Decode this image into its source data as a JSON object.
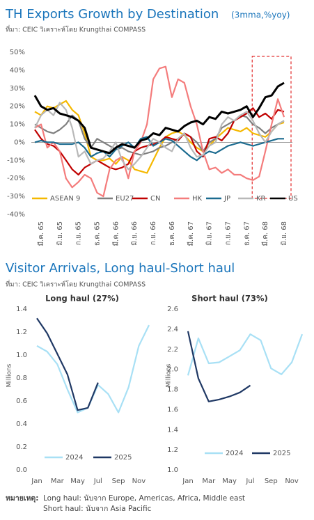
{
  "header": {
    "title": "TH Exports Growth by Destination",
    "subtitle": "(3mma,%yoy)",
    "source": "ที่มา: CEIC วิเคราะห์โดย Krungthai COMPASS"
  },
  "section2": {
    "title": "Visitor Arrivals, Long haul-Short haul",
    "source": "ที่มา: CEIC วิเคราะห์โดย Krungthai COMPASS"
  },
  "notes": {
    "label": "หมายเหตุ:",
    "lines": [
      "Long haul: นับจาก Europe, Americas, Africa, Middle east",
      "Short haul: นับจาก Asia Pacific"
    ]
  },
  "chart_data": [
    {
      "type": "line",
      "categories": [
        null,
        "มี.ค. 65",
        null,
        null,
        "มิ.ย. 65",
        null,
        null,
        "ก.ย. 65",
        null,
        null,
        "ธ.ค. 65",
        null,
        null,
        "มี.ค. 66",
        null,
        null,
        "มิ.ย. 66",
        null,
        null,
        "ก.ย. 66",
        null,
        null,
        "ธ.ค. 66",
        null,
        null,
        "มี.ค. 67",
        null,
        null,
        "มิ.ย. 67",
        null,
        null,
        "ก.ย. 67",
        null,
        null,
        "ธ.ค. 67",
        null,
        null,
        "มี.ค. 68",
        null,
        null,
        "มิ.ย. 68"
      ],
      "ylim": [
        -40,
        50
      ],
      "yticks": [
        {
          "value": -40,
          "label": "-40%"
        },
        {
          "value": -30,
          "label": "-30%"
        },
        {
          "value": -20,
          "label": "-20%"
        },
        {
          "value": -10,
          "label": "-10%"
        },
        {
          "value": 0,
          "label": "0%"
        },
        {
          "value": 10,
          "label": "10%"
        },
        {
          "value": 20,
          "label": "20%"
        },
        {
          "value": 30,
          "label": "30%"
        },
        {
          "value": 40,
          "label": "40%"
        },
        {
          "value": 50,
          "label": "50%"
        }
      ],
      "series": [
        {
          "name": "ASEAN 9",
          "color": "#f5b800",
          "values": [
            17,
            15,
            20,
            19,
            21,
            23,
            18,
            15,
            5,
            -8,
            -10,
            -10,
            -9,
            -12,
            -8,
            -10,
            -15,
            -16,
            -17,
            -10,
            -3,
            3,
            5,
            6,
            4,
            0,
            -3,
            -5,
            -2,
            2,
            5,
            8,
            7,
            6,
            8,
            5,
            4,
            3,
            6,
            10,
            11
          ]
        },
        {
          "name": "EU27",
          "color": "#7f7f7f",
          "values": [
            10,
            8,
            6,
            5,
            7,
            10,
            15,
            12,
            2,
            -3,
            2,
            0,
            -2,
            -4,
            -3,
            -5,
            -6,
            -7,
            -6,
            -5,
            -3,
            -2,
            0,
            2,
            5,
            3,
            0,
            -5,
            0,
            2,
            8,
            10,
            12,
            15,
            14,
            10,
            8,
            5,
            8,
            10,
            12
          ]
        },
        {
          "name": "CN",
          "color": "#c00000",
          "values": [
            7,
            2,
            -1,
            -2,
            -5,
            -10,
            -15,
            -18,
            -14,
            -12,
            -10,
            -12,
            -14,
            -15,
            -14,
            -12,
            -5,
            -3,
            -2,
            -1,
            0,
            3,
            2,
            1,
            5,
            3,
            -5,
            -8,
            2,
            3,
            1,
            5,
            12,
            14,
            16,
            19,
            14,
            16,
            13,
            18,
            17
          ]
        },
        {
          "name": "HK",
          "color": "#f47c7c",
          "values": [
            8,
            10,
            -3,
            0,
            -5,
            -20,
            -25,
            -22,
            -18,
            -20,
            -28,
            -30,
            -15,
            -10,
            -8,
            -20,
            -5,
            0,
            10,
            35,
            41,
            42,
            25,
            35,
            33,
            20,
            10,
            -5,
            -15,
            -14,
            -17,
            -15,
            -18,
            -18,
            -20,
            -21,
            -19,
            -5,
            10,
            24,
            14
          ]
        },
        {
          "name": "JP",
          "color": "#1b6b8f",
          "values": [
            0,
            1,
            0,
            0,
            -1,
            -1,
            -1,
            0,
            -3,
            -8,
            -6,
            -5,
            -8,
            -4,
            -2,
            0,
            -3,
            2,
            3,
            -2,
            0,
            2,
            1,
            -2,
            -5,
            -8,
            -10,
            -7,
            -5,
            -6,
            -4,
            -2,
            -1,
            0,
            -1,
            -2,
            -1,
            0,
            1,
            2,
            2
          ]
        },
        {
          "name": "KR",
          "color": "#b8b8b8",
          "values": [
            8,
            15,
            18,
            15,
            22,
            18,
            8,
            -8,
            -5,
            -12,
            -10,
            -9,
            -5,
            0,
            -10,
            -15,
            -12,
            -8,
            -3,
            2,
            0,
            -3,
            -5,
            2,
            5,
            -3,
            -8,
            -7,
            -2,
            0,
            10,
            14,
            12,
            15,
            17,
            12,
            5,
            0,
            6,
            10,
            12
          ]
        },
        {
          "name": "US",
          "color": "#000000",
          "values": [
            26,
            20,
            18,
            19,
            16,
            15,
            14,
            12,
            8,
            -3,
            -4,
            -5,
            -6,
            -3,
            -1,
            -2,
            -3,
            1,
            2,
            5,
            4,
            8,
            7,
            6,
            9,
            11,
            12,
            10,
            14,
            13,
            17,
            16,
            17,
            18,
            20,
            14,
            19,
            25,
            26,
            31,
            33
          ]
        }
      ]
    },
    {
      "type": "line",
      "title": "Long haul (27%)",
      "ylabel": "Millions",
      "categories": [
        "Jan",
        null,
        "Mar",
        null,
        "May",
        null,
        "Jul",
        null,
        "Sep",
        null,
        "Nov",
        null
      ],
      "ylim": [
        0,
        1.4
      ],
      "yticks": [
        {
          "value": 0,
          "label": "0.0"
        },
        0.2,
        0.4,
        0.6,
        0.8,
        {
          "value": 1,
          "label": "1.0"
        },
        1.2,
        1.4
      ],
      "series": [
        {
          "name": "2024",
          "color": "#a8e0f5",
          "values": [
            1.08,
            1.03,
            0.92,
            0.7,
            0.5,
            0.54,
            0.74,
            0.66,
            0.5,
            0.72,
            1.08,
            1.26
          ]
        },
        {
          "name": "2025",
          "color": "#1f3864",
          "values": [
            1.32,
            1.19,
            1.01,
            0.83,
            0.52,
            0.54,
            0.76,
            null,
            null,
            null,
            null,
            null
          ]
        }
      ]
    },
    {
      "type": "line",
      "title": "Short haul (73%)",
      "ylabel": "Millions",
      "categories": [
        "Jan",
        null,
        "Mar",
        null,
        "May",
        null,
        "Jul",
        null,
        "Sep",
        null,
        "Nov",
        null
      ],
      "ylim": [
        1,
        2.6
      ],
      "yticks": [
        {
          "value": 1,
          "label": "1.0"
        },
        1.2,
        1.4,
        1.6,
        1.8,
        {
          "value": 2,
          "label": "2.0"
        },
        2.2,
        2.4,
        2.6
      ],
      "series": [
        {
          "name": "2024",
          "color": "#a8e0f5",
          "values": [
            1.94,
            2.31,
            2.06,
            2.07,
            2.13,
            2.19,
            2.35,
            2.29,
            2.01,
            1.95,
            2.07,
            2.35
          ]
        },
        {
          "name": "2025",
          "color": "#1f3864",
          "values": [
            2.38,
            1.91,
            1.68,
            1.7,
            1.73,
            1.77,
            1.84,
            null,
            null,
            null,
            null,
            null
          ]
        }
      ]
    }
  ]
}
